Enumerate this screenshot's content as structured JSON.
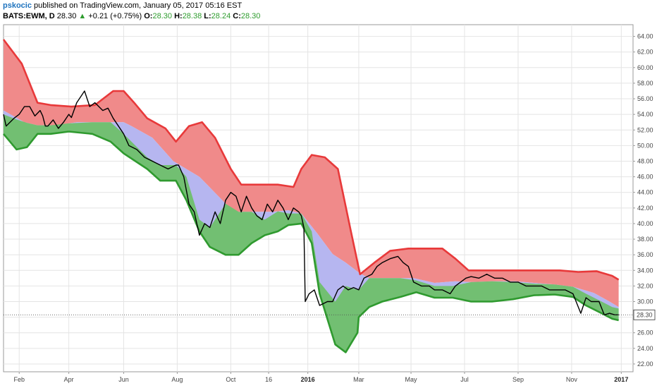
{
  "header": {
    "user": "pskocic",
    "published": "published on TradingView.com, January 05, 2017 05:16 EST"
  },
  "ohlc": {
    "symbol": "BATS:EWM, D",
    "price": "28.30",
    "change": "+0.21 (+0.75%)",
    "o_label": "O:",
    "o": "28.30",
    "h_label": "H:",
    "h": "28.38",
    "l_label": "L:",
    "l": "28.24",
    "c_label": "C:",
    "c": "28.30"
  },
  "colors": {
    "upper_band": "#f08a8a",
    "upper_line": "#e8393a",
    "mid_band": "#b6b6f0",
    "lower_band": "#72bf72",
    "lower_line": "#2f9a2f",
    "price_line": "#000000",
    "last_price_box": "#ffffff"
  },
  "chart_data": {
    "type": "line",
    "ylim": [
      21,
      65.5
    ],
    "xlim": [
      -0.5,
      23.6
    ],
    "grid": true,
    "last_price_label": "28.30",
    "y_ticks": [
      22,
      24,
      26,
      28,
      30,
      32,
      34,
      36,
      38,
      40,
      42,
      44,
      46,
      48,
      50,
      52,
      54,
      56,
      58,
      60,
      62,
      64
    ],
    "y_tick_labels": [
      "22.00",
      "24.00",
      "26.00",
      "28.00",
      "30.00",
      "32.00",
      "34.00",
      "36.00",
      "38.00",
      "40.00",
      "42.00",
      "44.00",
      "46.00",
      "48.00",
      "50.00",
      "52.00",
      "54.00",
      "56.00",
      "58.00",
      "60.00",
      "62.00",
      "64.00"
    ],
    "x_ticks": [
      {
        "pos": 0.1,
        "label": "Feb",
        "bold": false
      },
      {
        "pos": 2.0,
        "label": "Apr",
        "bold": false
      },
      {
        "pos": 4.1,
        "label": "Jun",
        "bold": false
      },
      {
        "pos": 6.15,
        "label": "Aug",
        "bold": false
      },
      {
        "pos": 8.2,
        "label": "Oct",
        "bold": false
      },
      {
        "pos": 9.65,
        "label": "16",
        "bold": false
      },
      {
        "pos": 11.15,
        "label": "2016",
        "bold": true
      },
      {
        "pos": 13.1,
        "label": "Mar",
        "bold": false
      },
      {
        "pos": 15.1,
        "label": "May",
        "bold": false
      },
      {
        "pos": 17.15,
        "label": "Jul",
        "bold": false
      },
      {
        "pos": 19.2,
        "label": "Sep",
        "bold": false
      },
      {
        "pos": 21.25,
        "label": "Nov",
        "bold": false
      },
      {
        "pos": 23.15,
        "label": "2017",
        "bold": true
      }
    ],
    "upper_band": [
      [
        -1,
        63.6
      ],
      [
        0.2,
        60.5
      ],
      [
        0.8,
        55.5
      ],
      [
        1.3,
        55.2
      ],
      [
        2.1,
        55.0
      ],
      [
        3.0,
        55.2
      ],
      [
        3.7,
        57.0
      ],
      [
        4.1,
        57.0
      ],
      [
        4.5,
        55.5
      ],
      [
        5.0,
        53.5
      ],
      [
        5.7,
        52.2
      ],
      [
        6.1,
        50.5
      ],
      [
        6.6,
        52.5
      ],
      [
        7.1,
        53.0
      ],
      [
        7.6,
        51.0
      ],
      [
        8.2,
        47.0
      ],
      [
        8.6,
        45.0
      ],
      [
        9.2,
        45.0
      ],
      [
        10.0,
        45.0
      ],
      [
        10.6,
        44.7
      ],
      [
        10.9,
        47.0
      ],
      [
        11.3,
        48.8
      ],
      [
        11.8,
        48.5
      ],
      [
        12.3,
        47.0
      ],
      [
        12.8,
        39.0
      ],
      [
        13.15,
        33.5
      ],
      [
        13.7,
        35.0
      ],
      [
        14.3,
        36.5
      ],
      [
        15.0,
        36.8
      ],
      [
        15.8,
        36.8
      ],
      [
        16.3,
        36.8
      ],
      [
        16.8,
        35.5
      ],
      [
        17.3,
        34.0
      ],
      [
        18.0,
        34.0
      ],
      [
        18.7,
        34.0
      ],
      [
        19.4,
        34.0
      ],
      [
        20.1,
        34.0
      ],
      [
        20.8,
        34.0
      ],
      [
        21.5,
        33.8
      ],
      [
        22.2,
        33.9
      ],
      [
        22.8,
        33.3
      ],
      [
        23.05,
        32.8
      ]
    ],
    "mid_band": [
      [
        -1,
        54.5
      ],
      [
        0.3,
        53.0
      ],
      [
        0.8,
        52.6
      ],
      [
        1.5,
        52.6
      ],
      [
        2.3,
        53.0
      ],
      [
        3.0,
        53.0
      ],
      [
        3.6,
        53.0
      ],
      [
        4.1,
        53.0
      ],
      [
        4.4,
        52.5
      ],
      [
        5.2,
        51.0
      ],
      [
        6.0,
        48.0
      ],
      [
        7.0,
        46.0
      ],
      [
        7.7,
        43.6
      ],
      [
        8.3,
        41.5
      ],
      [
        9.0,
        41.5
      ],
      [
        9.8,
        41.5
      ],
      [
        10.4,
        41.7
      ],
      [
        10.9,
        41.3
      ],
      [
        11.5,
        38.8
      ],
      [
        12.1,
        36.1
      ],
      [
        12.6,
        35.0
      ],
      [
        13.15,
        33.6
      ],
      [
        13.5,
        33.0
      ],
      [
        14.5,
        33.0
      ],
      [
        15.2,
        33.0
      ],
      [
        16.0,
        32.4
      ],
      [
        16.8,
        32.6
      ],
      [
        17.4,
        32.5
      ],
      [
        18.2,
        32.6
      ],
      [
        19.1,
        32.6
      ],
      [
        19.8,
        32.4
      ],
      [
        20.6,
        32.2
      ],
      [
        21.3,
        31.9
      ],
      [
        22.1,
        31.1
      ],
      [
        22.7,
        30.0
      ],
      [
        23.05,
        29.3
      ]
    ],
    "lower_band": [
      [
        -1,
        51.5
      ],
      [
        0.0,
        49.5
      ],
      [
        0.4,
        49.8
      ],
      [
        0.8,
        51.5
      ],
      [
        1.3,
        51.5
      ],
      [
        2.0,
        51.8
      ],
      [
        2.9,
        51.5
      ],
      [
        3.6,
        50.5
      ],
      [
        4.1,
        49.0
      ],
      [
        5.0,
        47.0
      ],
      [
        5.5,
        45.5
      ],
      [
        6.1,
        45.5
      ],
      [
        6.5,
        43.0
      ],
      [
        7.0,
        39.0
      ],
      [
        7.4,
        37.0
      ],
      [
        8.0,
        36.0
      ],
      [
        8.5,
        36.0
      ],
      [
        9.0,
        37.5
      ],
      [
        9.5,
        38.5
      ],
      [
        10.0,
        39.0
      ],
      [
        10.4,
        39.8
      ],
      [
        10.9,
        40.0
      ],
      [
        11.3,
        37.5
      ],
      [
        11.6,
        31.0
      ],
      [
        12.2,
        24.5
      ],
      [
        12.6,
        23.5
      ],
      [
        13.05,
        26.0
      ],
      [
        13.1,
        28.0
      ],
      [
        13.5,
        29.3
      ],
      [
        14.0,
        30.0
      ],
      [
        14.7,
        30.6
      ],
      [
        15.3,
        31.2
      ],
      [
        16.0,
        30.5
      ],
      [
        16.7,
        30.5
      ],
      [
        17.4,
        30.0
      ],
      [
        18.2,
        30.0
      ],
      [
        19.0,
        30.3
      ],
      [
        19.8,
        30.8
      ],
      [
        20.6,
        30.9
      ],
      [
        21.3,
        30.6
      ],
      [
        21.8,
        29.5
      ],
      [
        22.4,
        28.5
      ],
      [
        22.8,
        27.8
      ],
      [
        23.05,
        27.6
      ]
    ],
    "price": [
      [
        -1,
        54.0
      ],
      [
        -0.4,
        52.5
      ],
      [
        -0.1,
        53.5
      ],
      [
        0.1,
        54.0
      ],
      [
        0.3,
        55.0
      ],
      [
        0.5,
        55.0
      ],
      [
        0.7,
        53.8
      ],
      [
        0.9,
        54.5
      ],
      [
        1.0,
        53.8
      ],
      [
        1.1,
        52.5
      ],
      [
        1.2,
        52.5
      ],
      [
        1.4,
        53.3
      ],
      [
        1.6,
        52.2
      ],
      [
        1.8,
        53.0
      ],
      [
        2.0,
        54.0
      ],
      [
        2.1,
        53.6
      ],
      [
        2.3,
        55.5
      ],
      [
        2.6,
        57.0
      ],
      [
        2.8,
        55.0
      ],
      [
        3.0,
        55.5
      ],
      [
        3.3,
        54.5
      ],
      [
        3.5,
        54.8
      ],
      [
        3.7,
        53.5
      ],
      [
        3.9,
        52.5
      ],
      [
        4.1,
        51.5
      ],
      [
        4.3,
        50.0
      ],
      [
        4.6,
        49.5
      ],
      [
        4.9,
        48.5
      ],
      [
        5.2,
        48.0
      ],
      [
        5.5,
        47.5
      ],
      [
        5.8,
        47.0
      ],
      [
        6.1,
        47.5
      ],
      [
        6.2,
        47.5
      ],
      [
        6.4,
        46.0
      ],
      [
        6.6,
        42.5
      ],
      [
        6.8,
        41.5
      ],
      [
        6.9,
        40.0
      ],
      [
        7.0,
        38.5
      ],
      [
        7.2,
        40.0
      ],
      [
        7.4,
        39.5
      ],
      [
        7.6,
        41.5
      ],
      [
        7.8,
        40.0
      ],
      [
        8.0,
        43.0
      ],
      [
        8.2,
        44.0
      ],
      [
        8.4,
        43.5
      ],
      [
        8.6,
        41.5
      ],
      [
        8.8,
        43.5
      ],
      [
        9.0,
        42.0
      ],
      [
        9.2,
        41.0
      ],
      [
        9.4,
        40.5
      ],
      [
        9.6,
        42.5
      ],
      [
        9.8,
        41.5
      ],
      [
        10.0,
        43.0
      ],
      [
        10.2,
        42.0
      ],
      [
        10.4,
        40.5
      ],
      [
        10.6,
        42.0
      ],
      [
        10.8,
        41.5
      ],
      [
        10.9,
        41.0
      ],
      [
        11.0,
        39.5
      ],
      [
        11.05,
        30.0
      ],
      [
        11.2,
        31.0
      ],
      [
        11.4,
        31.5
      ],
      [
        11.6,
        29.5
      ],
      [
        11.9,
        30.0
      ],
      [
        12.1,
        30.0
      ],
      [
        12.3,
        31.5
      ],
      [
        12.5,
        32.0
      ],
      [
        12.7,
        31.5
      ],
      [
        12.9,
        31.8
      ],
      [
        13.1,
        31.5
      ],
      [
        13.3,
        33.0
      ],
      [
        13.6,
        33.5
      ],
      [
        13.8,
        34.5
      ],
      [
        14.0,
        35.0
      ],
      [
        14.3,
        35.5
      ],
      [
        14.6,
        35.8
      ],
      [
        14.8,
        35.0
      ],
      [
        15.0,
        34.5
      ],
      [
        15.2,
        32.5
      ],
      [
        15.5,
        32.0
      ],
      [
        15.8,
        32.0
      ],
      [
        16.0,
        31.5
      ],
      [
        16.3,
        31.5
      ],
      [
        16.6,
        31.0
      ],
      [
        16.8,
        32.0
      ],
      [
        17.0,
        32.5
      ],
      [
        17.2,
        33.0
      ],
      [
        17.4,
        33.2
      ],
      [
        17.7,
        33.0
      ],
      [
        18.0,
        33.5
      ],
      [
        18.3,
        33.0
      ],
      [
        18.6,
        33.0
      ],
      [
        18.9,
        32.5
      ],
      [
        19.2,
        32.5
      ],
      [
        19.5,
        32.0
      ],
      [
        19.8,
        32.0
      ],
      [
        20.1,
        32.0
      ],
      [
        20.4,
        31.5
      ],
      [
        20.7,
        31.5
      ],
      [
        21.0,
        31.5
      ],
      [
        21.3,
        31.0
      ],
      [
        21.6,
        28.5
      ],
      [
        21.8,
        30.5
      ],
      [
        22.0,
        30.0
      ],
      [
        22.3,
        30.0
      ],
      [
        22.5,
        28.3
      ],
      [
        22.7,
        28.5
      ],
      [
        22.9,
        28.3
      ],
      [
        23.05,
        28.3
      ]
    ]
  }
}
